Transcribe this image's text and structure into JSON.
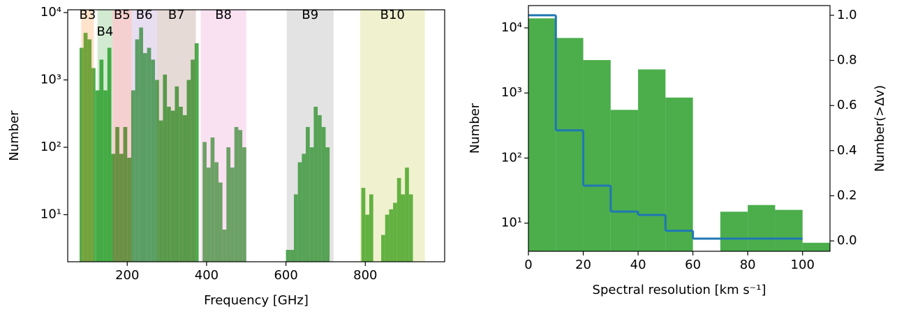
{
  "chart_data": [
    {
      "type": "histogram",
      "xlabel": "Frequency [GHz]",
      "ylabel": "Number",
      "xlim": [
        50,
        1000
      ],
      "xticks": [
        200,
        400,
        600,
        800
      ],
      "ylim": [
        2,
        11000
      ],
      "log_y": true,
      "yticks": [
        {
          "value": 10,
          "label": "10¹"
        },
        {
          "value": 100,
          "label": "10²"
        },
        {
          "value": 1000,
          "label": "10³"
        },
        {
          "value": 10000,
          "label": "10⁴"
        }
      ],
      "color": "#2ca02c",
      "bands": [
        {
          "name": "B3",
          "range": [
            84,
            116
          ],
          "color": "#ff7f0e"
        },
        {
          "name": "B4",
          "range": [
            125,
            163
          ],
          "color": "#2ca02c"
        },
        {
          "name": "B5",
          "range": [
            163,
            211
          ],
          "color": "#d62728"
        },
        {
          "name": "B6",
          "range": [
            211,
            275
          ],
          "color": "#9467bd"
        },
        {
          "name": "B7",
          "range": [
            275,
            373
          ],
          "color": "#8c564b"
        },
        {
          "name": "B8",
          "range": [
            385,
            500
          ],
          "color": "#e377c2"
        },
        {
          "name": "B9",
          "range": [
            602,
            720
          ],
          "color": "#7f7f7f"
        },
        {
          "name": "B10",
          "range": [
            787,
            950
          ],
          "color": "#bcbd22"
        }
      ],
      "bins": [
        80,
        90,
        100,
        110,
        120,
        130,
        140,
        150,
        160,
        170,
        180,
        190,
        200,
        210,
        220,
        230,
        240,
        250,
        260,
        270,
        280,
        290,
        300,
        310,
        320,
        330,
        340,
        350,
        360,
        370,
        380,
        390,
        400,
        410,
        420,
        430,
        440,
        450,
        460,
        470,
        480,
        490,
        500,
        510,
        520,
        530,
        540,
        550,
        560,
        570,
        580,
        590,
        600,
        610,
        620,
        630,
        640,
        650,
        660,
        670,
        680,
        690,
        700,
        710,
        720,
        730,
        740,
        750,
        760,
        770,
        780,
        790,
        800,
        810,
        820,
        830,
        840,
        850,
        860,
        870,
        880,
        890,
        900,
        910,
        920
      ],
      "values": [
        3000,
        5000,
        4000,
        1500,
        700,
        2000,
        700,
        3000,
        80,
        200,
        80,
        200,
        70,
        700,
        4000,
        6000,
        2500,
        3000,
        2000,
        1000,
        250,
        1200,
        400,
        350,
        800,
        400,
        300,
        1000,
        2000,
        3500,
        0,
        120,
        50,
        140,
        60,
        30,
        6,
        100,
        50,
        200,
        180,
        100,
        0,
        0,
        0,
        0,
        0,
        0,
        0,
        0,
        0,
        0,
        3,
        3,
        20,
        60,
        80,
        200,
        100,
        400,
        300,
        200,
        100,
        0,
        0,
        0,
        0,
        0,
        0,
        0,
        0,
        25,
        10,
        20,
        0,
        0,
        5,
        10,
        12,
        15,
        35,
        20,
        50,
        20
      ]
    },
    {
      "type": "histogram",
      "xlabel": "Spectral resolution [km s⁻¹]",
      "ylabel": "Number",
      "y2label": "Number(>Δv)",
      "xlim": [
        0,
        110
      ],
      "xticks": [
        0,
        20,
        40,
        60,
        80,
        100
      ],
      "ylim": [
        3.7,
        22000
      ],
      "log_y": true,
      "yticks": [
        {
          "value": 10,
          "label": "10¹"
        },
        {
          "value": 100,
          "label": "10²"
        },
        {
          "value": 1000,
          "label": "10³"
        },
        {
          "value": 10000,
          "label": "10⁴"
        }
      ],
      "y2lim": [
        -0.046,
        1.043
      ],
      "y2ticks": [
        {
          "value": 0,
          "label": "0.0"
        },
        0.2,
        0.4,
        0.6,
        0.8,
        {
          "value": 1,
          "label": "1.0"
        }
      ],
      "color": "#2ca02c",
      "bins": [
        0,
        10,
        20,
        30,
        40,
        50,
        60,
        70,
        80,
        90,
        100,
        110
      ],
      "values": [
        14000,
        7000,
        3200,
        550,
        2300,
        850,
        0,
        15,
        19,
        16,
        5
      ],
      "step": {
        "axis": "y2",
        "color": "#1f77b4",
        "bins": [
          0,
          10,
          20,
          30,
          40,
          50,
          60,
          100
        ],
        "values": [
          1.0,
          0.49,
          0.245,
          0.13,
          0.115,
          0.045,
          0.01
        ]
      }
    }
  ]
}
